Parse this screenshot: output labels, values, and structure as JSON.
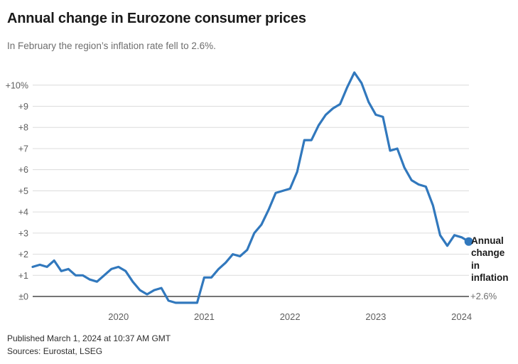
{
  "header": {
    "title": "Annual change in Eurozone consumer prices",
    "subtitle": "In February the region’s inflation rate fell to 2.6%."
  },
  "chart_data": {
    "type": "line",
    "title": "Annual change in Eurozone consumer prices",
    "series_name": "Annual change in inflation",
    "unit": "percent, annual change",
    "x_start": "2019-01",
    "x_end": "2024-02",
    "values_by_year": {
      "2019": [
        1.4,
        1.5,
        1.4,
        1.7,
        1.2,
        1.3,
        1.0,
        1.0,
        0.8,
        0.7,
        1.0,
        1.3
      ],
      "2020": [
        1.4,
        1.2,
        0.7,
        0.3,
        0.1,
        0.3,
        0.4,
        -0.2,
        -0.3,
        -0.3,
        -0.3,
        -0.3
      ],
      "2021": [
        0.9,
        0.9,
        1.3,
        1.6,
        2.0,
        1.9,
        2.2,
        3.0,
        3.4,
        4.1,
        4.9,
        5.0
      ],
      "2022": [
        5.1,
        5.9,
        7.4,
        7.4,
        8.1,
        8.6,
        8.9,
        9.1,
        9.9,
        10.6,
        10.1,
        9.2
      ],
      "2023": [
        8.6,
        8.5,
        6.9,
        7.0,
        6.1,
        5.5,
        5.3,
        5.2,
        4.3,
        2.9,
        2.4,
        2.9
      ],
      "2024": [
        2.8,
        2.6
      ]
    },
    "latest_value": 2.6,
    "grid": true,
    "legend_position": "right-end",
    "y_axis": {
      "range": [
        -0.5,
        10.7
      ],
      "ticks": [
        {
          "value": 10,
          "label": "+10%"
        },
        {
          "value": 9,
          "label": "+9"
        },
        {
          "value": 8,
          "label": "+8"
        },
        {
          "value": 7,
          "label": "+7"
        },
        {
          "value": 6,
          "label": "+6"
        },
        {
          "value": 5,
          "label": "+5"
        },
        {
          "value": 4,
          "label": "+4"
        },
        {
          "value": 3,
          "label": "+3"
        },
        {
          "value": 2,
          "label": "+2"
        },
        {
          "value": 1,
          "label": "+1"
        },
        {
          "value": 0,
          "label": "±0"
        }
      ]
    },
    "x_axis": {
      "ticks": [
        {
          "month_index": 12,
          "label": "2020"
        },
        {
          "month_index": 24,
          "label": "2021"
        },
        {
          "month_index": 36,
          "label": "2022"
        },
        {
          "month_index": 48,
          "label": "2023"
        },
        {
          "month_index": 60,
          "label": "2024"
        }
      ]
    }
  },
  "annotation": {
    "label": "Annual\nchange\nin\ninflation",
    "value": "+2.6%"
  },
  "footer": {
    "published": "Published March 1, 2024 at 10:37 AM GMT",
    "sources": "Sources: Eurostat, LSEG"
  },
  "colors": {
    "line": "#3178bd",
    "dot": "#3178bd",
    "grid": "#dcdcdc",
    "zero_line": "#757575",
    "tick_label": "#5e5e5e",
    "title": "#1a1a1a",
    "subtitle": "#6e6e6e",
    "value_label": "#6f6f6f"
  }
}
